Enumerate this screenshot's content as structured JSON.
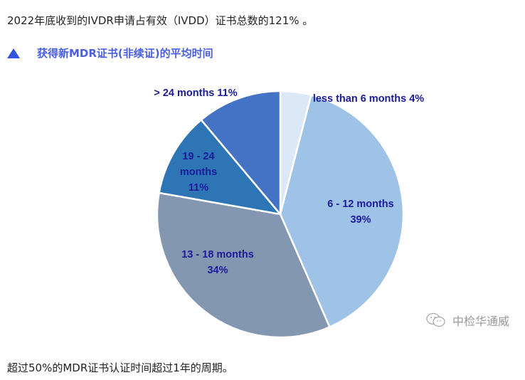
{
  "intro_text": "2022年底收到的IVDR申请占有效（IVDD）证书总数的121% 。",
  "heading": {
    "icon": "triangle-up-icon",
    "text": "获得新MDR证书(非续证)的平均时间",
    "icon_color": "#3355dd",
    "text_color": "#4a5fe0"
  },
  "chart_data": {
    "type": "pie",
    "title": "获得新MDR证书(非续证)的平均时间",
    "start_angle": "12 o'clock, clockwise",
    "categories": [
      "less than 6 months",
      "6 - 12 months",
      "13 - 18 months",
      "19 - 24 months",
      "> 24 months"
    ],
    "values": [
      4,
      39,
      34,
      11,
      11
    ],
    "unit": "%",
    "colors": [
      "#dde8f6",
      "#9fc3e7",
      "#8497b0",
      "#2e75b6",
      "#4472c4"
    ],
    "labels": [
      {
        "lines": [
          "less than 6 months 4%"
        ]
      },
      {
        "lines": [
          "6 - 12 months",
          "39%"
        ]
      },
      {
        "lines": [
          "13 - 18 months",
          "34%"
        ]
      },
      {
        "lines": [
          "19 - 24",
          "months",
          "11%"
        ]
      },
      {
        "lines": [
          "> 24 months 11%"
        ]
      }
    ],
    "label_color": "#1b1b9a",
    "legend": "none (data labels)"
  },
  "watermark": {
    "icon": "wechat-icon",
    "text": "中检华通威"
  },
  "outro_text": "超过50%的MDR证书认证时间超过1年的周期。"
}
